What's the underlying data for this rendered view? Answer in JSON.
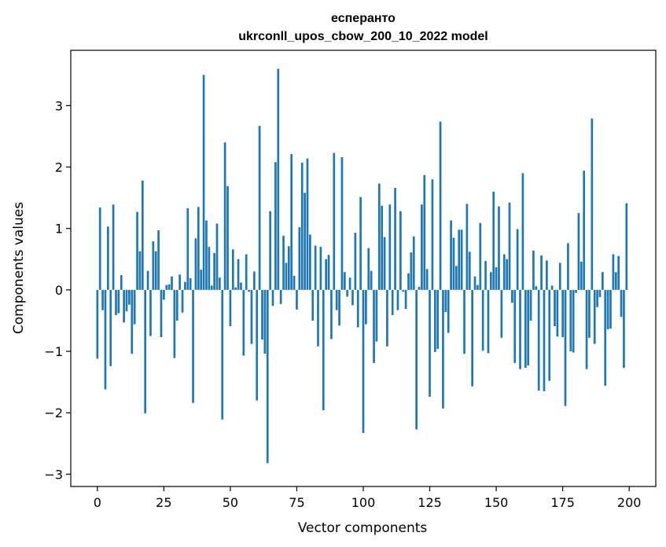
{
  "chart_data": {
    "type": "bar",
    "title_line1": "есперанто",
    "title_line2": "ukrconll_upos_cbow_200_10_2022 model",
    "xlabel": "Vector components",
    "ylabel": "Components values",
    "xlim": [
      -10,
      210
    ],
    "ylim": [
      -3.2,
      3.9
    ],
    "x_ticks": [
      0,
      25,
      50,
      75,
      100,
      125,
      150,
      175,
      200
    ],
    "y_ticks": [
      -3,
      -2,
      -1,
      0,
      1,
      2,
      3
    ],
    "grid": false,
    "bar_color": "#1f77b4",
    "x": [
      0,
      1,
      2,
      3,
      4,
      5,
      6,
      7,
      8,
      9,
      10,
      11,
      12,
      13,
      14,
      15,
      16,
      17,
      18,
      19,
      20,
      21,
      22,
      23,
      24,
      25,
      26,
      27,
      28,
      29,
      30,
      31,
      32,
      33,
      34,
      35,
      36,
      37,
      38,
      39,
      40,
      41,
      42,
      43,
      44,
      45,
      46,
      47,
      48,
      49,
      50,
      51,
      52,
      53,
      54,
      55,
      56,
      57,
      58,
      59,
      60,
      61,
      62,
      63,
      64,
      65,
      66,
      67,
      68,
      69,
      70,
      71,
      72,
      73,
      74,
      75,
      76,
      77,
      78,
      79,
      80,
      81,
      82,
      83,
      84,
      85,
      86,
      87,
      88,
      89,
      90,
      91,
      92,
      93,
      94,
      95,
      96,
      97,
      98,
      99,
      100,
      101,
      102,
      103,
      104,
      105,
      106,
      107,
      108,
      109,
      110,
      111,
      112,
      113,
      114,
      115,
      116,
      117,
      118,
      119,
      120,
      121,
      122,
      123,
      124,
      125,
      126,
      127,
      128,
      129,
      130,
      131,
      132,
      133,
      134,
      135,
      136,
      137,
      138,
      139,
      140,
      141,
      142,
      143,
      144,
      145,
      146,
      147,
      148,
      149,
      150,
      151,
      152,
      153,
      154,
      155,
      156,
      157,
      158,
      159,
      160,
      161,
      162,
      163,
      164,
      165,
      166,
      167,
      168,
      169,
      170,
      171,
      172,
      173,
      174,
      175,
      176,
      177,
      178,
      179,
      180,
      181,
      182,
      183,
      184,
      185,
      186,
      187,
      188,
      189,
      190,
      191,
      192,
      193,
      194,
      195,
      196,
      197,
      198,
      199
    ],
    "values": [
      -1.12,
      1.34,
      -0.33,
      -1.62,
      1.03,
      -1.24,
      1.39,
      -0.41,
      -0.38,
      0.24,
      -0.53,
      -0.35,
      -0.24,
      -1.04,
      -0.56,
      1.27,
      0.63,
      1.78,
      -2.01,
      0.31,
      -0.75,
      0.79,
      0.63,
      0.97,
      -0.77,
      -0.16,
      0.08,
      0.09,
      0.22,
      -1.11,
      -0.5,
      0.25,
      -0.37,
      0.13,
      1.33,
      0.19,
      -1.84,
      0.84,
      1.35,
      0.33,
      3.5,
      1.13,
      0.7,
      0.07,
      0.6,
      1.08,
      0.2,
      -2.11,
      2.4,
      1.69,
      -0.59,
      0.66,
      0.04,
      0.5,
      0.12,
      -1.07,
      0.58,
      -0.03,
      -0.88,
      0.3,
      -1.8,
      2.67,
      -0.81,
      -1.04,
      -2.82,
      1.28,
      -0.26,
      2.08,
      3.6,
      -0.23,
      0.88,
      0.44,
      0.71,
      2.21,
      0.23,
      -0.32,
      1.02,
      2.07,
      1.58,
      2.14,
      0.9,
      -0.5,
      0.72,
      -0.92,
      0.7,
      -1.96,
      0.5,
      0.57,
      -0.8,
      2.23,
      -0.33,
      -0.58,
      2.16,
      0.29,
      -0.11,
      0.2,
      -0.25,
      0.93,
      -0.61,
      1.51,
      -2.33,
      -0.56,
      0.68,
      0.31,
      -1.19,
      -0.84,
      1.73,
      1.37,
      0.86,
      -0.92,
      1.39,
      -0.41,
      1.66,
      -0.33,
      1.28,
      -0.03,
      -0.31,
      0.27,
      0.61,
      0.87,
      -2.27,
      0.05,
      1.39,
      1.87,
      0.34,
      -1.74,
      1.8,
      -1.01,
      -0.96,
      2.74,
      -1.93,
      -0.36,
      -0.7,
      1.13,
      0.85,
      0.39,
      0.98,
      0.98,
      -1.04,
      1.4,
      0.62,
      -1.57,
      0.22,
      0.08,
      1.09,
      -0.99,
      0.47,
      -1.03,
      0.29,
      1.6,
      0.37,
      1.36,
      -0.78,
      0.58,
      0.5,
      1.42,
      -0.21,
      -1.19,
      0.99,
      -1.29,
      1.9,
      -1.27,
      -1.23,
      -0.5,
      0.64,
      0.06,
      -1.64,
      0.56,
      -1.65,
      0.48,
      -1.48,
      0.07,
      -0.59,
      -0.76,
      0.44,
      -0.77,
      -1.89,
      0.76,
      -1.0,
      -1.02,
      -0.05,
      1.25,
      0.46,
      1.94,
      -1.29,
      -0.78,
      2.79,
      -0.88,
      -0.28,
      -0.12,
      0.29,
      -1.56,
      -0.64,
      -0.63,
      0.58,
      0.29,
      0.55,
      -0.44,
      -1.27,
      1.41
    ]
  }
}
